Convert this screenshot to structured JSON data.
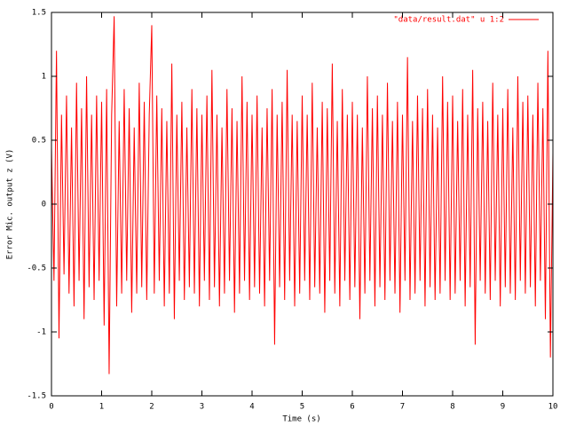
{
  "chart_data": {
    "type": "line",
    "xlabel": "Time (s)",
    "ylabel": "Error Mic. output z (V)",
    "xlim": [
      0,
      10
    ],
    "ylim": [
      -1.5,
      1.5
    ],
    "xticks": [
      0,
      1,
      2,
      3,
      4,
      5,
      6,
      7,
      8,
      9,
      10
    ],
    "yticks": [
      -1.5,
      -1,
      -0.5,
      0,
      0.5,
      1,
      1.5
    ],
    "legend": "top-right",
    "x": [
      0,
      0.05,
      0.1,
      0.15,
      0.2,
      0.25,
      0.3,
      0.35,
      0.4,
      0.45,
      0.5,
      0.55,
      0.6,
      0.65,
      0.7,
      0.75,
      0.8,
      0.85,
      0.9,
      0.95,
      1,
      1.05,
      1.1,
      1.15,
      1.2,
      1.25,
      1.3,
      1.35,
      1.4,
      1.45,
      1.5,
      1.55,
      1.6,
      1.65,
      1.7,
      1.75,
      1.8,
      1.85,
      1.9,
      1.95,
      2,
      2.05,
      2.1,
      2.15,
      2.2,
      2.25,
      2.3,
      2.35,
      2.4,
      2.45,
      2.5,
      2.55,
      2.6,
      2.65,
      2.7,
      2.75,
      2.8,
      2.85,
      2.9,
      2.95,
      3,
      3.05,
      3.1,
      3.15,
      3.2,
      3.25,
      3.3,
      3.35,
      3.4,
      3.45,
      3.5,
      3.55,
      3.6,
      3.65,
      3.7,
      3.75,
      3.8,
      3.85,
      3.9,
      3.95,
      4,
      4.05,
      4.1,
      4.15,
      4.2,
      4.25,
      4.3,
      4.35,
      4.4,
      4.45,
      4.5,
      4.55,
      4.6,
      4.65,
      4.7,
      4.75,
      4.8,
      4.85,
      4.9,
      4.95,
      5,
      5.05,
      5.1,
      5.15,
      5.2,
      5.25,
      5.3,
      5.35,
      5.4,
      5.45,
      5.5,
      5.55,
      5.6,
      5.65,
      5.7,
      5.75,
      5.8,
      5.85,
      5.9,
      5.95,
      6,
      6.05,
      6.1,
      6.15,
      6.2,
      6.25,
      6.3,
      6.35,
      6.4,
      6.45,
      6.5,
      6.55,
      6.6,
      6.65,
      6.7,
      6.75,
      6.8,
      6.85,
      6.9,
      6.95,
      7,
      7.05,
      7.1,
      7.15,
      7.2,
      7.25,
      7.3,
      7.35,
      7.4,
      7.45,
      7.5,
      7.55,
      7.6,
      7.65,
      7.7,
      7.75,
      7.8,
      7.85,
      7.9,
      7.95,
      8,
      8.05,
      8.1,
      8.15,
      8.2,
      8.25,
      8.3,
      8.35,
      8.4,
      8.45,
      8.5,
      8.55,
      8.6,
      8.65,
      8.7,
      8.75,
      8.8,
      8.85,
      8.9,
      8.95,
      9,
      9.05,
      9.1,
      9.15,
      9.2,
      9.25,
      9.3,
      9.35,
      9.4,
      9.45,
      9.5,
      9.55,
      9.6,
      9.65,
      9.7,
      9.75,
      9.8,
      9.85,
      9.9,
      9.95,
      10
    ],
    "series": [
      {
        "name": "\"data/result.dat\" u 1:2",
        "color": "#ff0000",
        "values": [
          0.45,
          -0.6,
          1.2,
          -1.05,
          0.7,
          -0.55,
          0.85,
          -0.7,
          0.6,
          -0.8,
          0.95,
          -0.6,
          0.75,
          -0.9,
          1.0,
          -0.65,
          0.7,
          -0.75,
          0.85,
          -0.6,
          0.8,
          -0.95,
          0.9,
          -1.33,
          0.7,
          1.47,
          -0.8,
          0.65,
          -0.7,
          0.9,
          -0.6,
          0.75,
          -0.85,
          0.6,
          -0.7,
          0.95,
          -0.65,
          0.8,
          -0.75,
          0.7,
          1.4,
          -0.7,
          0.85,
          -0.6,
          0.75,
          -0.8,
          0.65,
          -0.7,
          1.1,
          -0.9,
          0.7,
          -0.6,
          0.8,
          -0.75,
          0.6,
          -0.65,
          0.9,
          -0.7,
          0.75,
          -0.8,
          0.7,
          -0.6,
          0.85,
          -0.75,
          1.05,
          -0.65,
          0.7,
          -0.8,
          0.6,
          -0.7,
          0.9,
          -0.6,
          0.75,
          -0.85,
          0.65,
          -0.7,
          1.0,
          -0.6,
          0.8,
          -0.75,
          0.7,
          -0.65,
          0.85,
          -0.7,
          0.6,
          -0.8,
          0.75,
          -0.6,
          0.9,
          -1.1,
          0.7,
          -0.65,
          0.8,
          -0.75,
          1.05,
          -0.6,
          0.7,
          -0.8,
          0.65,
          -0.7,
          0.85,
          -0.6,
          0.7,
          -0.75,
          0.95,
          -0.65,
          0.6,
          -0.7,
          0.8,
          -0.85,
          0.75,
          -0.6,
          1.1,
          -0.7,
          0.65,
          -0.8,
          0.9,
          -0.6,
          0.7,
          -0.75,
          0.8,
          -0.65,
          0.7,
          -0.9,
          0.6,
          -0.7,
          1.0,
          -0.6,
          0.75,
          -0.8,
          0.85,
          -0.65,
          0.7,
          -0.75,
          0.95,
          -0.6,
          0.65,
          -0.7,
          0.8,
          -0.85,
          0.7,
          -0.6,
          1.15,
          -0.75,
          0.65,
          -0.7,
          0.85,
          -0.6,
          0.75,
          -0.8,
          0.9,
          -0.65,
          0.7,
          -0.75,
          0.6,
          -0.7,
          1.0,
          -0.6,
          0.8,
          -0.75,
          0.85,
          -0.7,
          0.65,
          -0.6,
          0.9,
          -0.8,
          0.7,
          -0.65,
          1.05,
          -1.1,
          0.75,
          -0.6,
          0.8,
          -0.7,
          0.65,
          -0.75,
          0.95,
          -0.6,
          0.7,
          -0.8,
          0.75,
          -0.65,
          0.9,
          -0.7,
          0.6,
          -0.75,
          1.0,
          -0.6,
          0.8,
          -0.7,
          0.85,
          -0.65,
          0.7,
          -0.8,
          0.95,
          -0.6,
          0.75,
          -0.9,
          1.2,
          -1.2,
          0.4
        ]
      }
    ]
  }
}
